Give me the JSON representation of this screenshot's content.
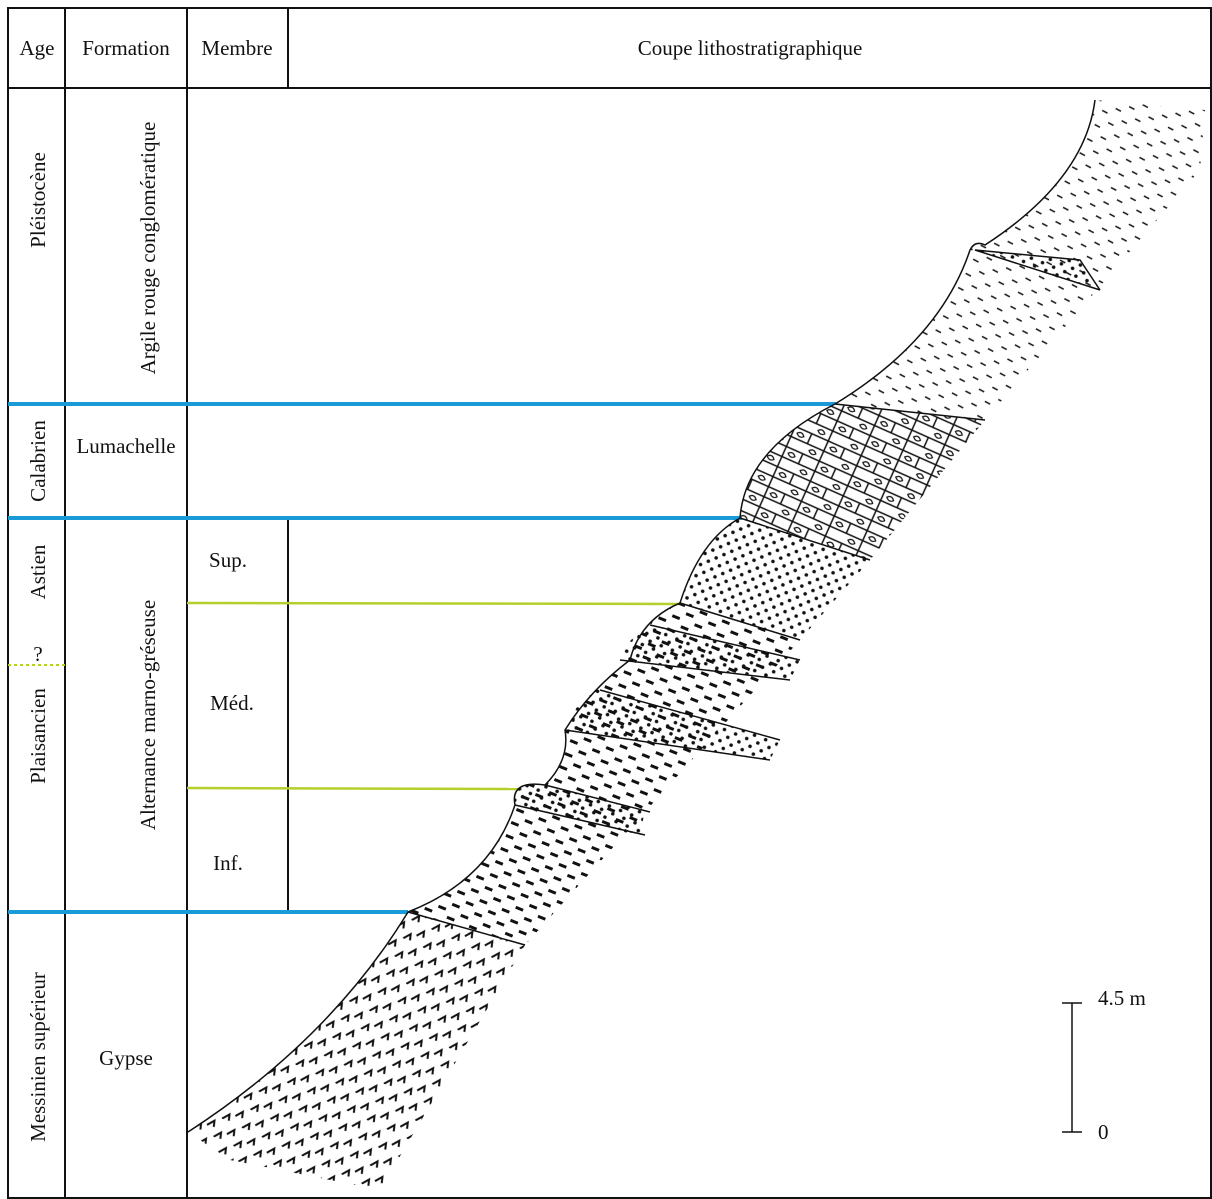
{
  "header": {
    "age": "Age",
    "formation": "Formation",
    "membre": "Membre",
    "coupe": "Coupe lithostratigraphique"
  },
  "ages": [
    "Pléistocène",
    "Calabrien",
    "Astien",
    "Plaisancien",
    "Messinien supérieur"
  ],
  "uncertain_boundary": "?",
  "formations": [
    "Argile rouge conglomératique",
    "Lumachelle",
    "Alternance marno-gréseuse",
    "Gypse"
  ],
  "members": [
    "Sup.",
    "Méd.",
    "Inf."
  ],
  "scale": {
    "top": "4.5 m",
    "bottom": "0"
  }
}
